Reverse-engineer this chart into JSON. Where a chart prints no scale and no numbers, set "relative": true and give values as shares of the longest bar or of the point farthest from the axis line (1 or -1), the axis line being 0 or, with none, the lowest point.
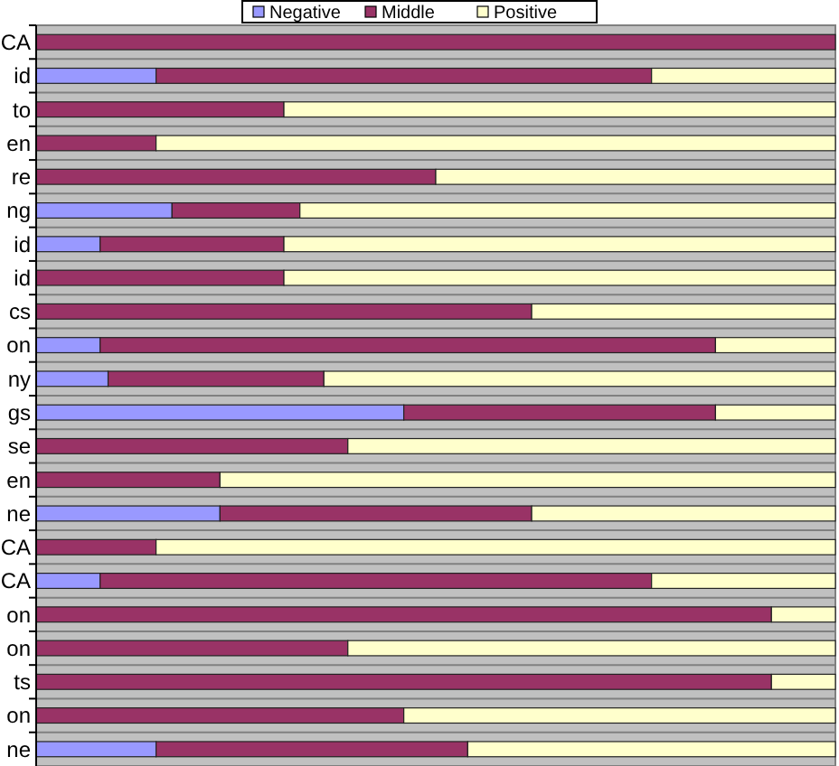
{
  "chart_data": {
    "type": "bar",
    "orientation": "horizontal",
    "stacked": true,
    "relative": true,
    "grid": "y",
    "legend": "top",
    "categories": [
      "CA",
      "id",
      "to",
      "en",
      "re",
      "ng",
      "id",
      "id",
      "cs",
      "on",
      "ny",
      "gs",
      "se",
      "en",
      "ne",
      "CA",
      "CA",
      "on",
      "on",
      "ts",
      "on",
      "ne"
    ],
    "series": [
      {
        "name": "Negative",
        "color": "#9999ff",
        "values": [
          0,
          0.15,
          0,
          0,
          0,
          0.17,
          0.08,
          0,
          0,
          0.08,
          0.09,
          0.46,
          0,
          0,
          0.23,
          0,
          0.08,
          0,
          0,
          0,
          0,
          0.15
        ]
      },
      {
        "name": "Middle",
        "color": "#993366",
        "values": [
          1,
          0.62,
          0.31,
          0.15,
          0.5,
          0.16,
          0.23,
          0.31,
          0.62,
          0.77,
          0.27,
          0.39,
          0.39,
          0.23,
          0.39,
          0.15,
          0.69,
          0.92,
          0.39,
          0.92,
          0.46,
          0.39
        ]
      },
      {
        "name": "Positive",
        "color": "#ffffcc",
        "values": [
          0,
          0.23,
          0.69,
          0.85,
          0.5,
          0.67,
          0.69,
          0.69,
          0.38,
          0.15,
          0.64,
          0.15,
          0.61,
          0.77,
          0.38,
          0.85,
          0.23,
          0.08,
          0.61,
          0.08,
          0.54,
          0.46
        ]
      }
    ]
  }
}
